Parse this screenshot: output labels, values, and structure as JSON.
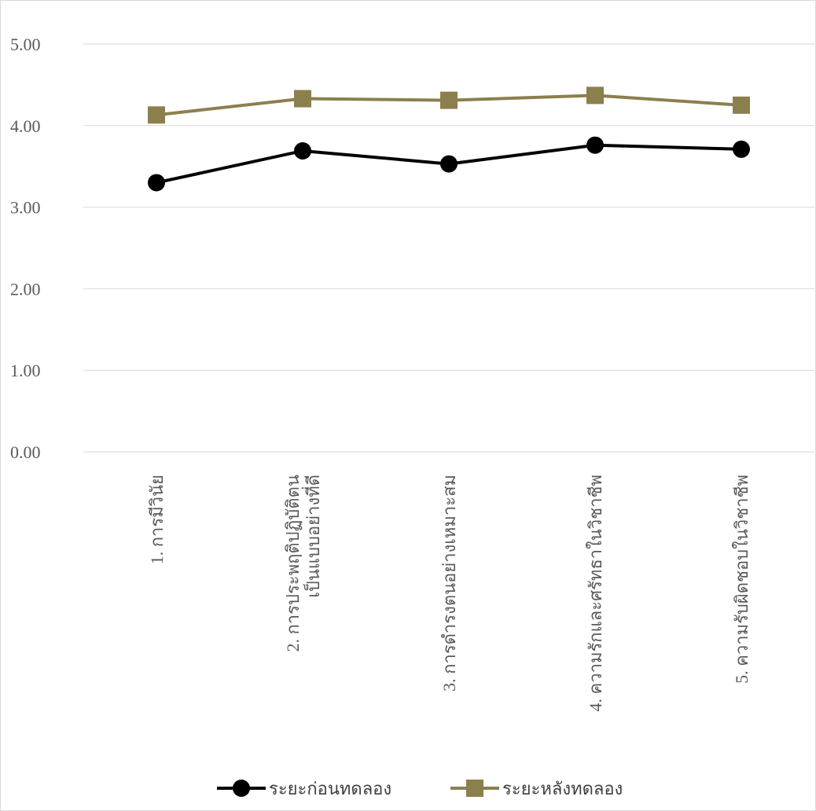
{
  "chart_data": {
    "type": "line",
    "title": "",
    "xlabel": "",
    "ylabel": "",
    "ylim": [
      0,
      5
    ],
    "yticks": [
      "0.00",
      "1.00",
      "2.00",
      "3.00",
      "4.00",
      "5.00"
    ],
    "grid": true,
    "legend_position": "bottom",
    "categories": [
      [
        "1. การมีวินัย"
      ],
      [
        "2. การประพฤติปฏิบัติตน",
        "เป็นแบบอย่างที่ดี"
      ],
      [
        "3. การดำรงตนอย่างเหมาะสม"
      ],
      [
        "4. ความรักและศรัทธาในวิชาชีพ"
      ],
      [
        "5. ความรับผิดชอบในวิชาชีพ"
      ]
    ],
    "series": [
      {
        "name": "ระยะก่อนทดลอง",
        "color": "#000000",
        "marker": "circle",
        "values": [
          3.3,
          3.69,
          3.53,
          3.76,
          3.71
        ]
      },
      {
        "name": "ระยะหลังทดลอง",
        "color": "#8c7f4e",
        "marker": "square",
        "values": [
          4.13,
          4.33,
          4.31,
          4.37,
          4.25
        ]
      }
    ]
  }
}
